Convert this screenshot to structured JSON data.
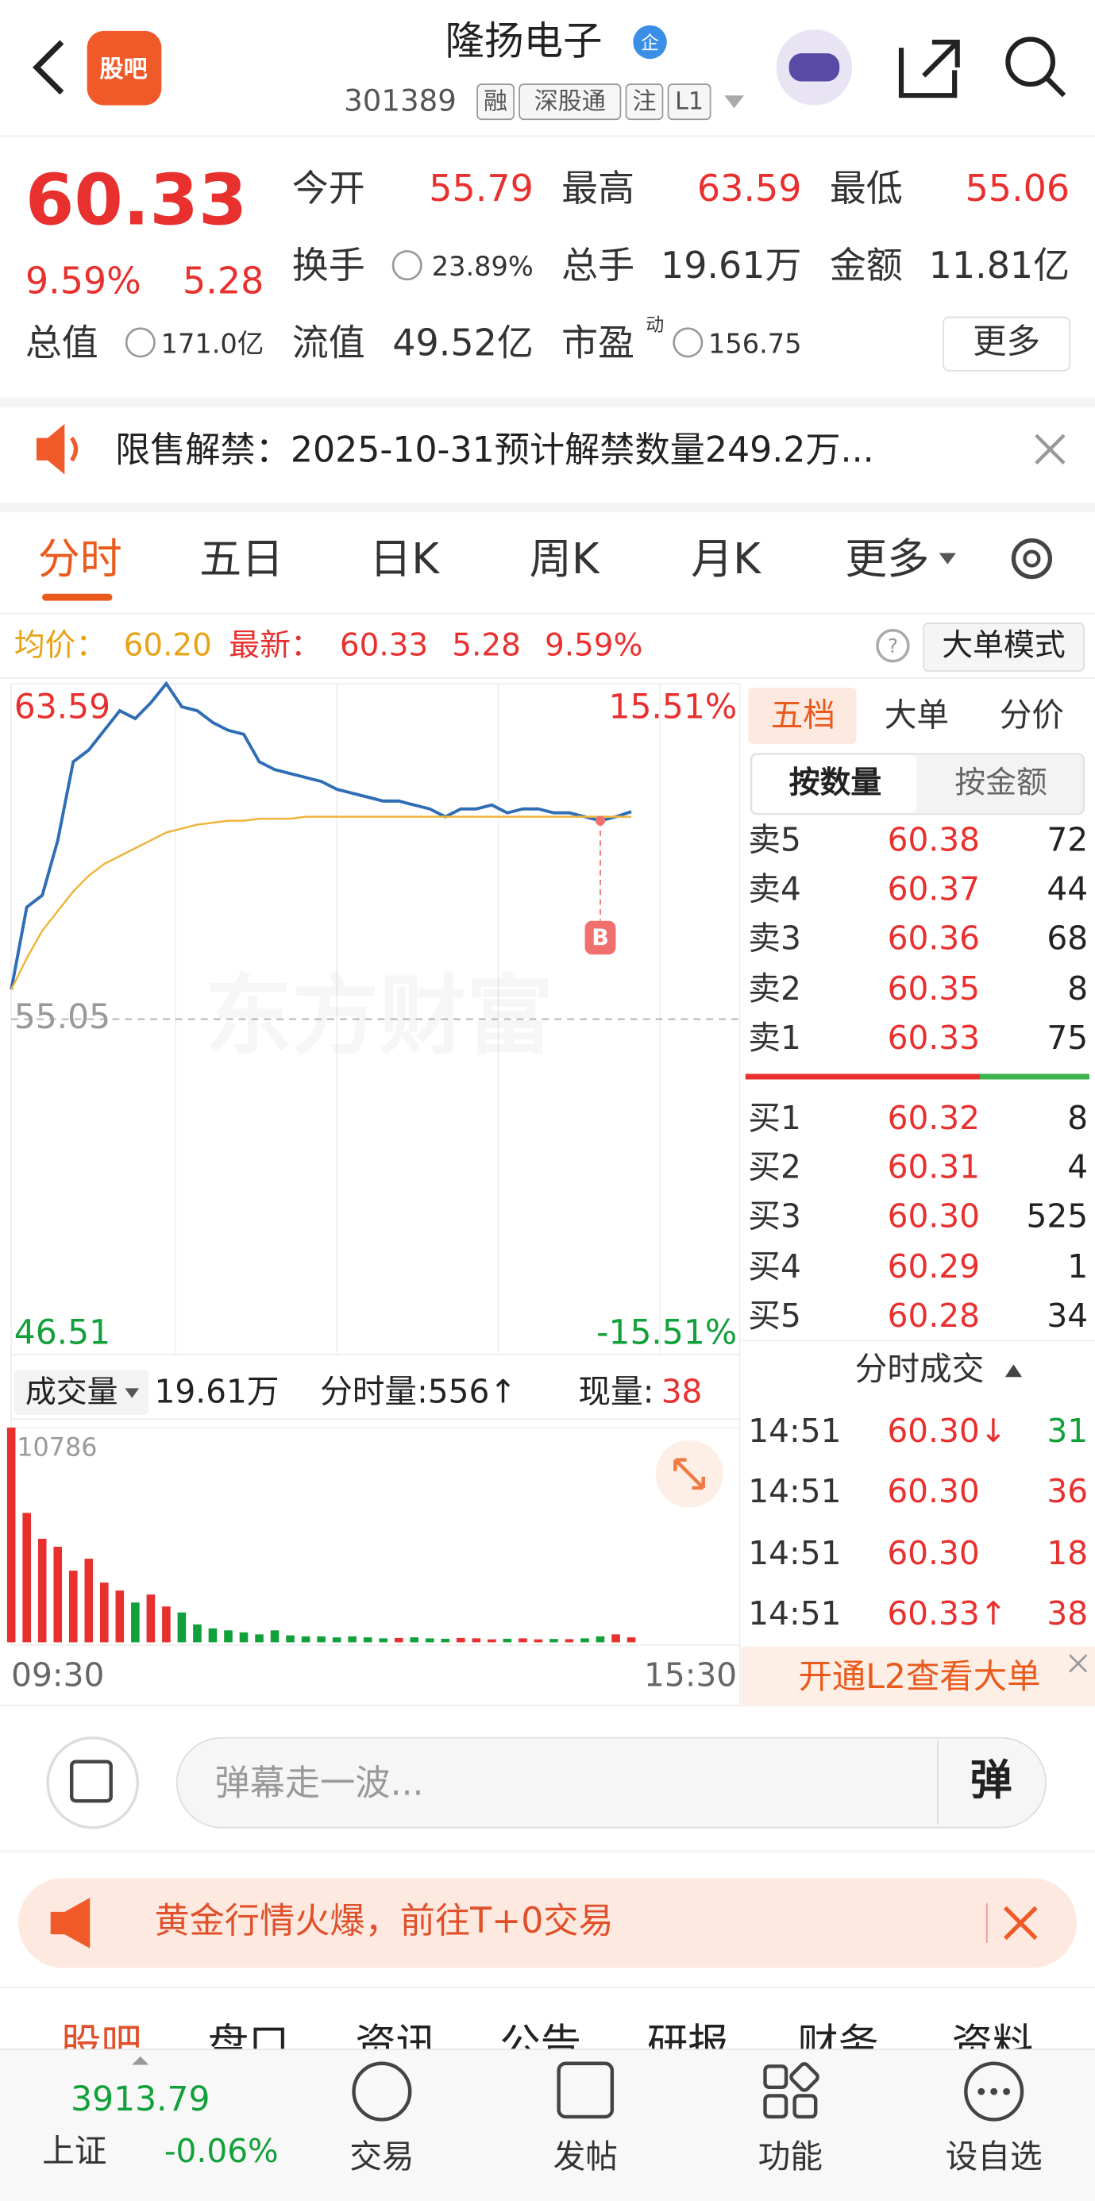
{
  "header": {
    "title": "隆扬电子",
    "badge": "企",
    "logo": "股吧",
    "code": "301389",
    "tags": [
      "融",
      "深股通",
      "注",
      "L1"
    ]
  },
  "quote": {
    "price": "60.33",
    "change_pct": "9.59%",
    "change": "5.28",
    "fields": [
      {
        "label": "今开",
        "value": "55.79"
      },
      {
        "label": "最高",
        "value": "63.59"
      },
      {
        "label": "最低",
        "value": "55.06"
      },
      {
        "label": "换手",
        "value": "23.89%"
      },
      {
        "label": "总手",
        "value": "19.61万"
      },
      {
        "label": "金额",
        "value": "11.81亿"
      },
      {
        "label": "总值",
        "value": "171.0亿"
      },
      {
        "label": "流值",
        "value": "49.52亿"
      },
      {
        "label": "市盈",
        "value": "156.75",
        "superscript": "动"
      }
    ],
    "more": "更多"
  },
  "notice": "限售解禁：2025-10-31预计解禁数量249.2万...",
  "tabs": [
    "分时",
    "五日",
    "日K",
    "周K",
    "月K",
    "更多"
  ],
  "info_bar": {
    "avg_label": "均价：",
    "avg": "60.20",
    "latest_label": "最新：",
    "latest": "60.33",
    "change": "5.28",
    "change_pct": "9.59%",
    "mode": "大单模式"
  },
  "watermark": "东方财富",
  "chart_data": [
    {
      "type": "line",
      "categories": [
        null,
        null,
        null,
        null,
        null,
        null,
        null,
        null,
        null,
        null,
        null,
        null,
        null,
        null,
        null,
        null,
        null,
        null,
        null,
        null,
        null,
        null,
        null,
        null,
        null,
        null,
        null,
        null,
        null,
        null,
        null,
        null,
        null,
        null,
        null,
        null,
        null,
        null,
        null,
        null,
        null,
        null,
        null,
        null,
        null,
        null,
        null,
        null
      ],
      "series": [
        {
          "color": "#2f6db5",
          "values": [
            55.8,
            57.9,
            58.2,
            59.6,
            61.6,
            61.9,
            62.4,
            62.9,
            62.7,
            63.1,
            63.59,
            63.0,
            62.9,
            62.6,
            62.4,
            62.3,
            61.6,
            61.4,
            61.3,
            61.2,
            61.1,
            60.9,
            60.8,
            60.7,
            60.6,
            60.6,
            60.5,
            60.4,
            60.2,
            60.4,
            60.4,
            60.5,
            60.3,
            60.4,
            60.4,
            60.3,
            60.3,
            60.2,
            60.1,
            60.2,
            60.33,
            null,
            null,
            null,
            null,
            null,
            null,
            null
          ]
        },
        {
          "color": "#f0b43a",
          "values": [
            55.8,
            56.6,
            57.3,
            57.8,
            58.3,
            58.7,
            59.0,
            59.2,
            59.4,
            59.6,
            59.8,
            59.9,
            60.0,
            60.05,
            60.1,
            60.1,
            60.15,
            60.15,
            60.15,
            60.2,
            60.2,
            60.2,
            60.2,
            60.2,
            60.2,
            60.2,
            60.2,
            60.2,
            60.2,
            60.2,
            60.2,
            60.2,
            60.2,
            60.2,
            60.2,
            60.2,
            60.2,
            60.2,
            60.2,
            60.2,
            60.2,
            null,
            null,
            null,
            null,
            null,
            null,
            null
          ]
        }
      ],
      "ylim": [
        46.51,
        63.59
      ],
      "yticks": [
        63.59,
        55.05,
        46.51
      ],
      "y2lim": [
        -15.51,
        15.51
      ],
      "y2ticks": [
        {
          "value": 15.51,
          "label": "15.51%"
        },
        {
          "value": -15.51,
          "label": "-15.51%"
        }
      ],
      "annotation": "B"
    },
    {
      "type": "bar",
      "title": "成交量",
      "total": "19.61万",
      "period_volume": "分时量:556↑",
      "current_label": "现量:",
      "current": "38",
      "categories": [
        "09:30",
        null,
        null,
        null,
        null,
        null,
        null,
        null,
        null,
        null,
        null,
        null,
        null,
        null,
        null,
        null,
        null,
        null,
        null,
        null,
        null,
        null,
        null,
        null,
        null,
        null,
        null,
        null,
        null,
        null,
        null,
        null,
        null,
        null,
        null,
        null,
        null,
        null,
        null,
        null,
        null,
        null,
        null,
        null,
        null,
        null,
        null,
        "15:30"
      ],
      "values": [
        10786,
        6500,
        5200,
        4800,
        3600,
        4200,
        3000,
        2600,
        2000,
        2400,
        1800,
        1500,
        900,
        700,
        600,
        500,
        400,
        600,
        350,
        300,
        300,
        250,
        300,
        250,
        200,
        220,
        250,
        200,
        180,
        220,
        200,
        150,
        180,
        200,
        150,
        170,
        160,
        200,
        300,
        400,
        250,
        null,
        null,
        null,
        null,
        null,
        null,
        null
      ],
      "up_color": "#e8312f",
      "down_color": "#12a03a",
      "ylim": [
        0,
        10786
      ],
      "yticks": [
        10786
      ]
    }
  ],
  "order_book": {
    "tabs": [
      "五档",
      "大单",
      "分价"
    ],
    "sub_tabs": [
      "按数量",
      "按金额"
    ],
    "asks": [
      [
        "卖5",
        "60.38",
        "72"
      ],
      [
        "卖4",
        "60.37",
        "44"
      ],
      [
        "卖3",
        "60.36",
        "68"
      ],
      [
        "卖2",
        "60.35",
        "8"
      ],
      [
        "卖1",
        "60.33",
        "75"
      ]
    ],
    "bids": [
      [
        "买1",
        "60.32",
        "8"
      ],
      [
        "买2",
        "60.31",
        "4"
      ],
      [
        "买3",
        "60.30",
        "525"
      ],
      [
        "买4",
        "60.29",
        "1"
      ],
      [
        "买5",
        "60.28",
        "34"
      ]
    ]
  },
  "trades": {
    "title": "分时成交",
    "rows": [
      [
        "14:51",
        "60.30↓",
        "31"
      ],
      [
        "14:51",
        "60.30",
        "36"
      ],
      [
        "14:51",
        "60.30",
        "18"
      ],
      [
        "14:51",
        "60.33↑",
        "38"
      ]
    ],
    "l2_banner": "开通L2查看大单"
  },
  "comment": {
    "placeholder": "弹幕走一波...",
    "button": "弹"
  },
  "promo": "黄金行情火爆，前往T+0交易",
  "section_tabs": [
    "股吧",
    "盘口",
    "资讯",
    "公告",
    "研报",
    "财务",
    "资料"
  ],
  "bottom_nav": {
    "index_value": "3913.79",
    "index_name": "上证",
    "index_change": "-0.06%",
    "items": [
      "交易",
      "发帖",
      "功能",
      "设自选"
    ]
  }
}
